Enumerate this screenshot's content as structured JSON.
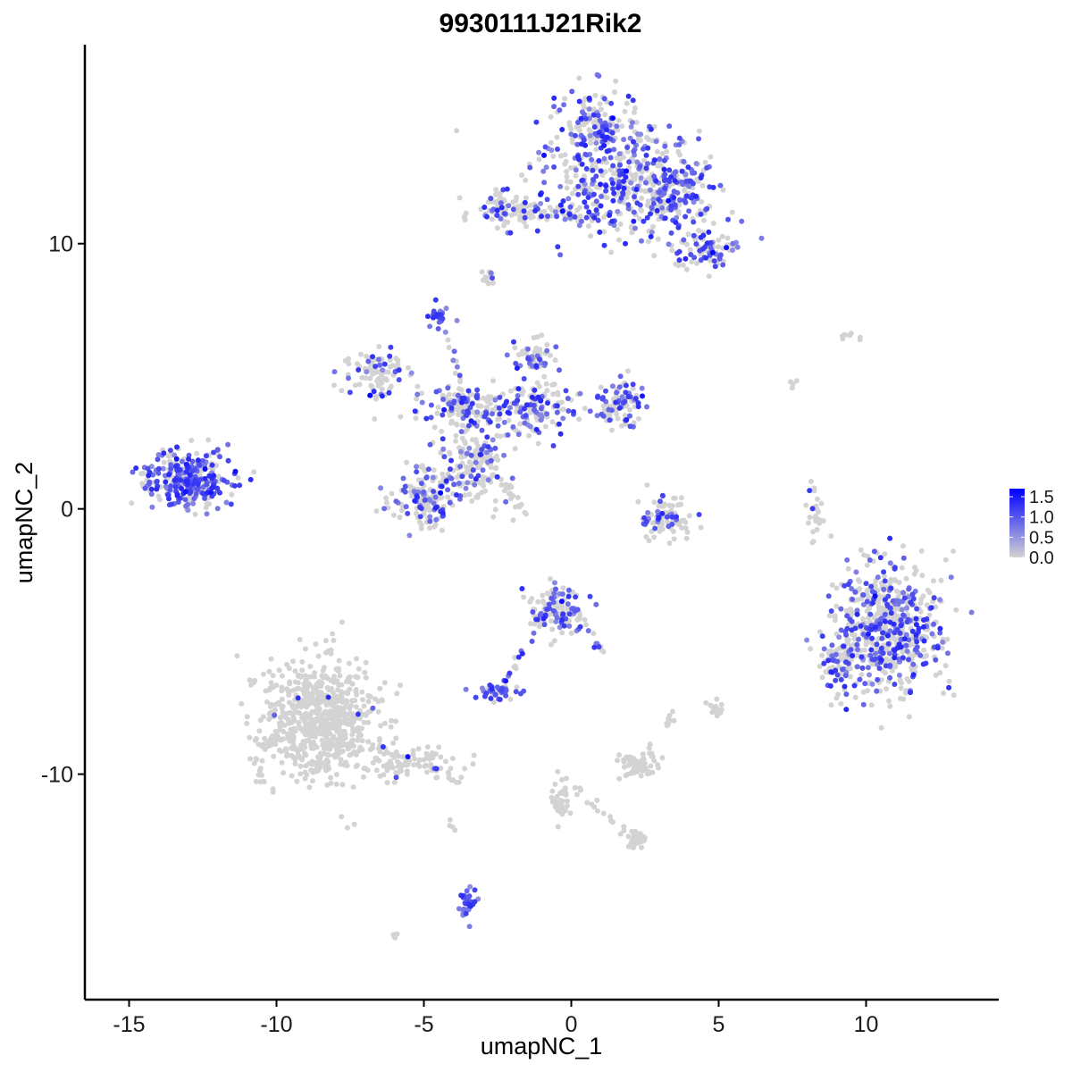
{
  "chart_data": {
    "type": "scatter",
    "title": "9930111J21Rik2",
    "xlabel": "umapNC_1",
    "ylabel": "umapNC_2",
    "xlim": [
      -16.5,
      14.5
    ],
    "ylim": [
      -18.5,
      17.5
    ],
    "x_ticks": [
      -15,
      -10,
      -5,
      0,
      5,
      10
    ],
    "y_ticks": [
      -10,
      0,
      10
    ],
    "x_tick_labels": [
      "-15",
      "-10",
      "-5",
      "0",
      "5",
      "10"
    ],
    "y_tick_labels": [
      "-10",
      "0",
      "10"
    ],
    "grid": false,
    "legend": {
      "placement": "right",
      "type": "colorbar",
      "labels": [
        "1.5",
        "1.0",
        "0.5",
        "0.0"
      ],
      "values": [
        1.5,
        1.0,
        0.5,
        0.0
      ],
      "range": [
        0,
        1.7
      ],
      "low_color": "#d3d3d3",
      "high_color": "#0000ff"
    },
    "clusters": [
      {
        "cx": 1.5,
        "cy": 12.5,
        "sx": 1.8,
        "sy": 1.6,
        "n": 380,
        "expr_frac": 0.45
      },
      {
        "cx": 0.8,
        "cy": 14.5,
        "sx": 0.8,
        "sy": 0.8,
        "n": 120,
        "expr_frac": 0.5
      },
      {
        "cx": 3.5,
        "cy": 12.0,
        "sx": 1.0,
        "sy": 0.9,
        "n": 180,
        "expr_frac": 0.55
      },
      {
        "cx": 4.6,
        "cy": 9.8,
        "sx": 0.8,
        "sy": 0.6,
        "n": 90,
        "expr_frac": 0.45
      },
      {
        "cx": -2.3,
        "cy": 11.3,
        "sx": 0.8,
        "sy": 0.5,
        "n": 70,
        "expr_frac": 0.3
      },
      {
        "cx": -0.8,
        "cy": 11.1,
        "sx": 1.3,
        "sy": 0.2,
        "n": 40,
        "expr_frac": 0.3
      },
      {
        "cx": -2.8,
        "cy": 8.8,
        "sx": 0.2,
        "sy": 0.3,
        "n": 12,
        "expr_frac": 0.1
      },
      {
        "cx": -4.5,
        "cy": 7.3,
        "sx": 0.25,
        "sy": 0.3,
        "n": 22,
        "expr_frac": 0.9
      },
      {
        "cx": -6.5,
        "cy": 5.0,
        "sx": 0.9,
        "sy": 0.6,
        "n": 90,
        "expr_frac": 0.25
      },
      {
        "cx": -3.6,
        "cy": 3.9,
        "sx": 1.0,
        "sy": 0.5,
        "n": 150,
        "expr_frac": 0.35
      },
      {
        "cx": -3.3,
        "cy": 1.8,
        "sx": 0.7,
        "sy": 1.0,
        "n": 160,
        "expr_frac": 0.3
      },
      {
        "cx": -5.0,
        "cy": 0.5,
        "sx": 0.8,
        "sy": 0.8,
        "n": 150,
        "expr_frac": 0.4
      },
      {
        "cx": -1.3,
        "cy": 3.8,
        "sx": 1.0,
        "sy": 0.8,
        "n": 150,
        "expr_frac": 0.45
      },
      {
        "cx": -1.2,
        "cy": 5.8,
        "sx": 0.5,
        "sy": 0.5,
        "n": 50,
        "expr_frac": 0.6
      },
      {
        "cx": 1.6,
        "cy": 4.0,
        "sx": 0.6,
        "sy": 0.6,
        "n": 90,
        "expr_frac": 0.55
      },
      {
        "cx": -12.9,
        "cy": 1.1,
        "sx": 1.0,
        "sy": 0.7,
        "n": 330,
        "expr_frac": 0.6
      },
      {
        "cx": 3.2,
        "cy": -0.3,
        "sx": 0.6,
        "sy": 0.6,
        "n": 90,
        "expr_frac": 0.25
      },
      {
        "cx": 8.3,
        "cy": -0.2,
        "sx": 0.2,
        "sy": 0.6,
        "n": 25,
        "expr_frac": 0.2
      },
      {
        "cx": 10.8,
        "cy": -4.5,
        "sx": 1.2,
        "sy": 1.6,
        "n": 620,
        "expr_frac": 0.4
      },
      {
        "cx": 9.1,
        "cy": -5.8,
        "sx": 0.5,
        "sy": 0.9,
        "n": 80,
        "expr_frac": 0.4
      },
      {
        "cx": -0.5,
        "cy": -3.8,
        "sx": 0.6,
        "sy": 0.6,
        "n": 120,
        "expr_frac": 0.45
      },
      {
        "cx": -2.5,
        "cy": -6.9,
        "sx": 0.4,
        "sy": 0.25,
        "n": 40,
        "expr_frac": 0.8
      },
      {
        "cx": -8.5,
        "cy": -8.0,
        "sx": 1.4,
        "sy": 1.5,
        "n": 720,
        "expr_frac": 0.01
      },
      {
        "cx": -5.8,
        "cy": -9.5,
        "sx": 1.3,
        "sy": 0.4,
        "n": 80,
        "expr_frac": 0.05
      },
      {
        "cx": 2.3,
        "cy": -9.6,
        "sx": 0.5,
        "sy": 0.4,
        "n": 60,
        "expr_frac": 0.0
      },
      {
        "cx": 4.9,
        "cy": -7.5,
        "sx": 0.2,
        "sy": 0.2,
        "n": 15,
        "expr_frac": 0.0
      },
      {
        "cx": 3.3,
        "cy": -7.9,
        "sx": 0.15,
        "sy": 0.2,
        "n": 8,
        "expr_frac": 0.0
      },
      {
        "cx": -3.5,
        "cy": -14.9,
        "sx": 0.2,
        "sy": 0.4,
        "n": 30,
        "expr_frac": 0.9
      },
      {
        "cx": 2.2,
        "cy": -12.5,
        "sx": 0.35,
        "sy": 0.2,
        "n": 30,
        "expr_frac": 0.0
      },
      {
        "cx": -0.3,
        "cy": -11.0,
        "sx": 0.2,
        "sy": 0.6,
        "n": 35,
        "expr_frac": 0.0
      },
      {
        "cx": 9.4,
        "cy": 6.6,
        "sx": 0.5,
        "sy": 0.2,
        "n": 8,
        "expr_frac": 0.0
      },
      {
        "cx": 7.6,
        "cy": 4.7,
        "sx": 0.1,
        "sy": 0.2,
        "n": 4,
        "expr_frac": 0.0
      },
      {
        "cx": -6.0,
        "cy": -16.1,
        "sx": 0.1,
        "sy": 0.1,
        "n": 4,
        "expr_frac": 0.0
      },
      {
        "cx": -4.0,
        "cy": -11.8,
        "sx": 0.1,
        "sy": 0.2,
        "n": 4,
        "expr_frac": 0.0
      }
    ],
    "streaks": [
      {
        "from": [
          -4.3,
          6.8
        ],
        "to": [
          -3.5,
          3.8
        ],
        "n": 14,
        "expr_frac": 0.3
      },
      {
        "from": [
          -2.8,
          1.8
        ],
        "to": [
          -1.3,
          -0.6
        ],
        "n": 22,
        "expr_frac": 0.05
      },
      {
        "from": [
          -2.5,
          11.6
        ],
        "to": [
          1.0,
          11.0
        ],
        "n": 30,
        "expr_frac": 0.4
      },
      {
        "from": [
          -1.0,
          -4.3
        ],
        "to": [
          -2.3,
          -6.5
        ],
        "n": 14,
        "expr_frac": 0.7
      },
      {
        "from": [
          0.2,
          -4.0
        ],
        "to": [
          1.2,
          -5.6
        ],
        "n": 12,
        "expr_frac": 0.6
      },
      {
        "from": [
          -0.4,
          -10.0
        ],
        "to": [
          2.0,
          -12.3
        ],
        "n": 18,
        "expr_frac": 0.0
      },
      {
        "from": [
          -5.0,
          -9.6
        ],
        "to": [
          -3.8,
          -10.3
        ],
        "n": 15,
        "expr_frac": 0.1
      }
    ]
  }
}
